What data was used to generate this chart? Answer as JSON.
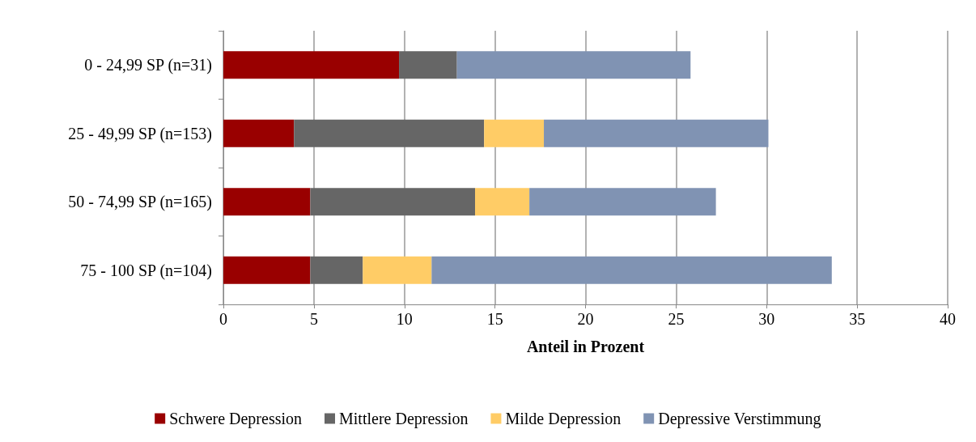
{
  "chart_data": {
    "type": "bar",
    "orientation": "horizontal",
    "stacked": true,
    "xlabel": "Anteil in Prozent",
    "categories": [
      "0 - 24,99 SP (n=31)",
      "25 - 49,99 SP (n=153)",
      "50 - 74,99 SP (n=165)",
      "75 - 100 SP (n=104)"
    ],
    "series": [
      {
        "name": "Schwere Depression",
        "color": "#990000",
        "values": [
          9.7,
          3.9,
          4.8,
          4.8
        ]
      },
      {
        "name": "Mittlere Depression",
        "color": "#666666",
        "values": [
          3.2,
          10.5,
          9.1,
          2.9
        ]
      },
      {
        "name": "Milde Depression",
        "color": "#ffcc66",
        "values": [
          0,
          3.3,
          3.0,
          3.8
        ]
      },
      {
        "name": "Depressive Verstimmung",
        "color": "#8093b3",
        "values": [
          12.9,
          12.4,
          10.3,
          22.1
        ]
      }
    ],
    "xlim": [
      0,
      40
    ],
    "xticks": [
      0,
      5,
      10,
      15,
      20,
      25,
      30,
      35,
      40
    ],
    "grid": "x",
    "legend": "bottom"
  }
}
